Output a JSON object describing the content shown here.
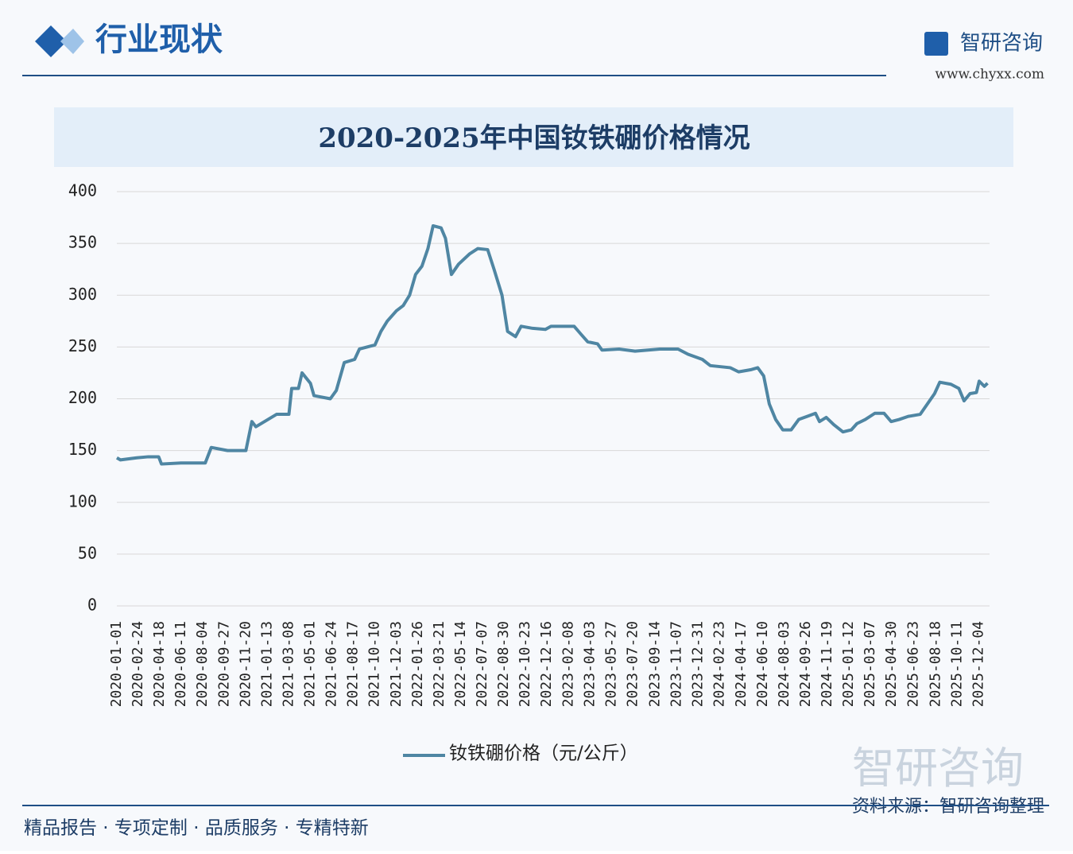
{
  "header": {
    "section": "行业现状",
    "brand": "智研咨询",
    "url": "www.chyxx.com"
  },
  "footer": {
    "slogan": "精品报告 · 专项定制 · 品质服务 · 专精特新",
    "source": "资料来源：智研咨询整理",
    "watermark": "智研咨询"
  },
  "chart_data": {
    "type": "line",
    "title": "2020-2025年中国钕铁硼价格情况",
    "xlim": [
      "2020-01-01",
      "2025-12-31"
    ],
    "xticks": [
      "2020-01-01",
      "2020-02-24",
      "2020-04-18",
      "2020-06-11",
      "2020-08-04",
      "2020-09-27",
      "2020-11-20",
      "2021-01-13",
      "2021-03-08",
      "2021-05-01",
      "2021-06-24",
      "2021-08-17",
      "2021-10-10",
      "2021-12-03",
      "2022-01-26",
      "2022-03-21",
      "2022-05-14",
      "2022-07-07",
      "2022-08-30",
      "2022-10-23",
      "2022-12-16",
      "2023-02-08",
      "2023-04-03",
      "2023-05-27",
      "2023-07-20",
      "2023-09-14",
      "2023-11-07",
      "2023-12-31",
      "2024-02-23",
      "2024-04-17",
      "2024-06-10",
      "2024-08-03",
      "2024-09-26",
      "2024-11-19",
      "2025-01-12",
      "2025-03-07",
      "2025-04-30",
      "2025-06-23",
      "2025-08-18",
      "2025-10-11",
      "2025-12-04"
    ],
    "ylim": [
      0,
      400
    ],
    "yticks": [
      0,
      50,
      100,
      150,
      200,
      250,
      300,
      350,
      400
    ],
    "grid": true,
    "x": [
      "2020-01-01",
      "2020-01-10",
      "2020-02-20",
      "2020-03-20",
      "2020-04-15",
      "2020-04-22",
      "2020-06-10",
      "2020-08-10",
      "2020-08-25",
      "2020-10-05",
      "2020-11-20",
      "2020-12-05",
      "2020-12-15",
      "2021-02-05",
      "2021-03-08",
      "2021-03-15",
      "2021-04-01",
      "2021-04-10",
      "2021-05-01",
      "2021-05-10",
      "2021-06-20",
      "2021-07-05",
      "2021-07-25",
      "2021-08-20",
      "2021-09-01",
      "2021-10-10",
      "2021-10-25",
      "2021-11-10",
      "2021-12-03",
      "2021-12-20",
      "2022-01-05",
      "2022-01-20",
      "2022-02-05",
      "2022-02-20",
      "2022-03-05",
      "2022-03-25",
      "2022-04-05",
      "2022-04-20",
      "2022-05-08",
      "2022-06-05",
      "2022-06-25",
      "2022-07-20",
      "2022-08-05",
      "2022-08-25",
      "2022-09-08",
      "2022-09-28",
      "2022-10-12",
      "2022-11-10",
      "2022-12-12",
      "2022-12-26",
      "2023-02-22",
      "2023-03-12",
      "2023-03-28",
      "2023-04-22",
      "2023-05-03",
      "2023-06-15",
      "2023-07-25",
      "2023-09-25",
      "2023-11-10",
      "2023-12-05",
      "2024-01-10",
      "2024-01-30",
      "2024-03-20",
      "2024-04-10",
      "2024-05-10",
      "2024-05-28",
      "2024-06-12",
      "2024-06-26",
      "2024-07-12",
      "2024-07-30",
      "2024-08-20",
      "2024-09-08",
      "2024-10-20",
      "2024-10-30",
      "2024-11-16",
      "2024-12-05",
      "2024-12-28",
      "2025-01-18",
      "2025-02-01",
      "2025-02-22",
      "2025-03-18",
      "2025-04-10",
      "2025-04-28",
      "2025-05-18",
      "2025-06-10",
      "2025-07-10",
      "2025-07-28",
      "2025-08-15",
      "2025-08-28",
      "2025-09-25",
      "2025-10-15",
      "2025-10-28",
      "2025-11-12",
      "2025-11-28",
      "2025-12-05",
      "2025-12-18",
      "2025-12-26"
    ],
    "series": [
      {
        "name": "钕铁硼价格（元/公斤）",
        "color": "#4f86a3",
        "values": [
          143,
          141,
          143,
          144,
          144,
          137,
          138,
          138,
          153,
          150,
          150,
          178,
          173,
          185,
          185,
          210,
          210,
          225,
          215,
          203,
          200,
          208,
          235,
          238,
          248,
          252,
          265,
          275,
          285,
          290,
          300,
          320,
          328,
          345,
          367,
          365,
          355,
          320,
          330,
          340,
          345,
          344,
          325,
          300,
          265,
          260,
          270,
          268,
          267,
          270,
          270,
          262,
          255,
          253,
          247,
          248,
          246,
          248,
          248,
          243,
          238,
          232,
          230,
          226,
          228,
          230,
          222,
          195,
          180,
          170,
          170,
          180,
          186,
          178,
          182,
          175,
          168,
          170,
          176,
          180,
          186,
          186,
          178,
          180,
          183,
          185,
          195,
          205,
          216,
          214,
          210,
          198,
          205,
          206,
          217,
          212,
          215
        ]
      }
    ]
  }
}
